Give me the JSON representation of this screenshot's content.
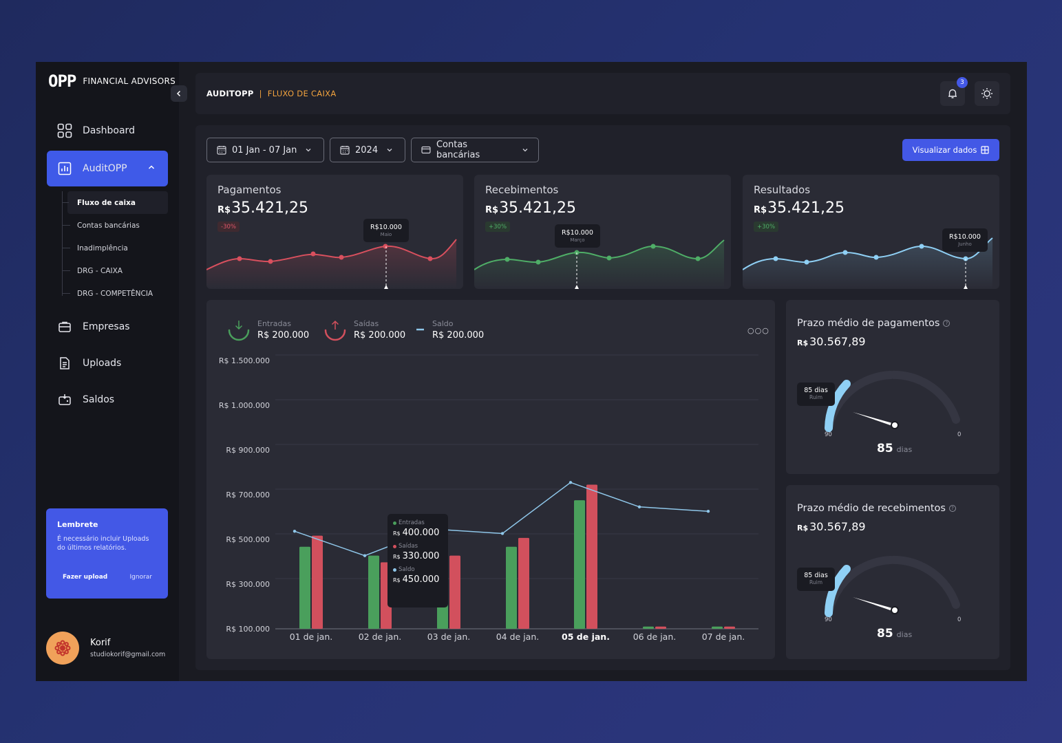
{
  "brand": {
    "mark": "OPP",
    "name": "FINANCIAL ADVISORS"
  },
  "sidebar": {
    "items": [
      {
        "label": "Dashboard",
        "icon": "grid-icon"
      },
      {
        "label": "AuditOPP",
        "icon": "chart-report-icon"
      },
      {
        "label": "Empresas",
        "icon": "briefcase-icon"
      },
      {
        "label": "Uploads",
        "icon": "document-upload-icon"
      },
      {
        "label": "Saldos",
        "icon": "wallet-icon"
      }
    ],
    "submenu": [
      "Fluxo de caixa",
      "Contas bancárias",
      "Inadimplência",
      "DRG - CAIXA",
      "DRG - COMPETÊNCIA"
    ]
  },
  "reminder": {
    "title": "Lembrete",
    "text": "É necessário incluir Uploads do últimos relatórios.",
    "upload_label": "Fazer upload",
    "ignore_label": "Ignorar"
  },
  "user": {
    "name": "Korif",
    "email": "studiokorif@gmail.com"
  },
  "header": {
    "breadcrumb_root": "AUDITOPP",
    "separator": "|",
    "page": "FLUXO DE CAIXA",
    "notifications": "3"
  },
  "filters": {
    "period": "01 Jan - 07 Jan",
    "year": "2024",
    "accounts": "Contas bancárias",
    "action_label": "Visualizar dados"
  },
  "kpis": [
    {
      "title": "Pagamentos",
      "currency": "R$",
      "value": "35.421,25",
      "badge": "-30%",
      "tip_value": "R$10.000",
      "tip_label": "Maio",
      "color": "#d9505e"
    },
    {
      "title": "Recebimentos",
      "currency": "R$",
      "value": "35.421,25",
      "badge": "+30%",
      "tip_value": "R$10.000",
      "tip_label": "Março",
      "color": "#4fae67"
    },
    {
      "title": "Resultados",
      "currency": "R$",
      "value": "35.421,25",
      "badge": "+30%",
      "tip_value": "R$10.000",
      "tip_label": "Junho",
      "color": "#8fd0f5"
    }
  ],
  "legend": [
    {
      "label": "Entradas",
      "value": "R$ 200.000"
    },
    {
      "label": "Saídas",
      "value": "R$ 200.000"
    },
    {
      "label": "Saldo",
      "value": "R$ 200.000"
    }
  ],
  "chart_data": {
    "type": "bar",
    "categories": [
      "01 de jan.",
      "02 de jan.",
      "03 de jan.",
      "04 de jan.",
      "05 de jan.",
      "06 de jan.",
      "07 de jan."
    ],
    "y_ticks": [
      "R$ 1.500.000",
      "R$ 1.000.000",
      "R$ 900.000",
      "R$ 700.000",
      "R$ 500.000",
      "R$ 300.000",
      "R$ 100.000"
    ],
    "series": [
      {
        "name": "Entradas",
        "type": "bar",
        "color": "#4a9f5c",
        "values": [
          370000,
          330000,
          400000,
          370000,
          580000,
          10000,
          10000
        ]
      },
      {
        "name": "Saídas",
        "type": "bar",
        "color": "#d2505d",
        "values": [
          420000,
          300000,
          330000,
          410000,
          650000,
          10000,
          10000
        ]
      },
      {
        "name": "Saldo",
        "type": "line",
        "color": "#8fc7ea",
        "values": [
          440000,
          330000,
          450000,
          430000,
          660000,
          550000,
          530000
        ]
      }
    ],
    "tooltip": {
      "entradas_label": "Entradas",
      "entradas_value": "400.000",
      "saidas_label": "Saídas",
      "saidas_value": "330.000",
      "saldo_label": "Saldo",
      "saldo_value": "450.000",
      "currency": "R$"
    },
    "highlight_category": "05 de jan."
  },
  "gauges": [
    {
      "title": "Prazo médio de pagamentos",
      "currency": "R$",
      "value": "30.567,89",
      "tip_value": "85 dias",
      "tip_label": "Ruim",
      "min": "90",
      "max": "0",
      "reading": "85",
      "unit": "dias",
      "level": 0.94
    },
    {
      "title": "Prazo médio de recebimentos",
      "currency": "R$",
      "value": "30.567,89",
      "tip_value": "85 dias",
      "tip_label": "Ruim",
      "min": "90",
      "max": "0",
      "reading": "85",
      "unit": "dias",
      "level": 0.94
    }
  ]
}
